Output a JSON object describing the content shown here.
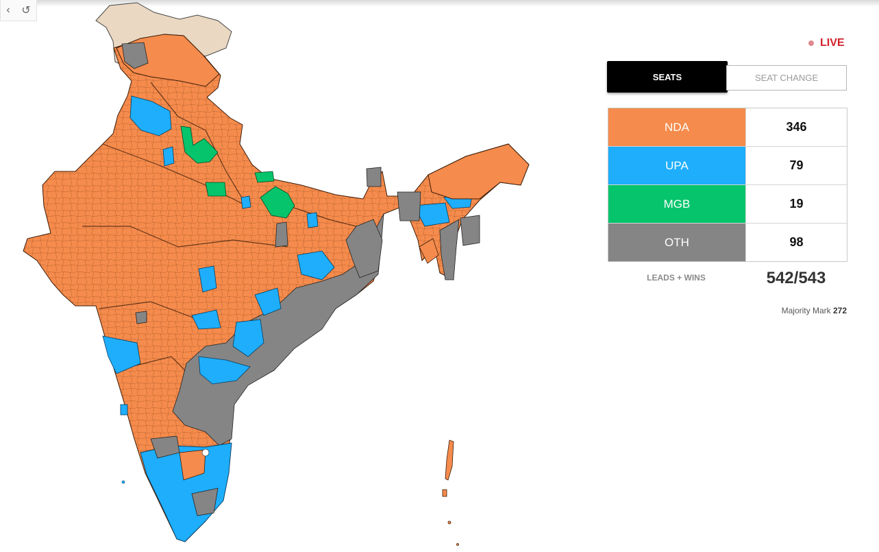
{
  "status": {
    "live_label": "LIVE"
  },
  "tabs": [
    {
      "label": "SEATS",
      "active": true
    },
    {
      "label": "SEAT CHANGE",
      "active": false
    }
  ],
  "tally": [
    {
      "party": "NDA",
      "seats": "346",
      "color": "#f58b4c"
    },
    {
      "party": "UPA",
      "seats": "79",
      "color": "#1eaefc"
    },
    {
      "party": "MGB",
      "seats": "19",
      "color": "#05c46b"
    },
    {
      "party": "OTH",
      "seats": "98",
      "color": "#858585"
    }
  ],
  "summary": {
    "leads_label": "LEADS + WINS",
    "leads_value": "542/543",
    "majority_label": "Majority Mark",
    "majority_value": "272"
  },
  "map": {
    "colors": {
      "nda": "#f58b4c",
      "upa": "#1eaefc",
      "mgb": "#05c46b",
      "oth": "#858585",
      "disputed": "#ead8c2"
    },
    "toolbar_icons": [
      "chevron-left-icon",
      "reset-icon"
    ]
  }
}
